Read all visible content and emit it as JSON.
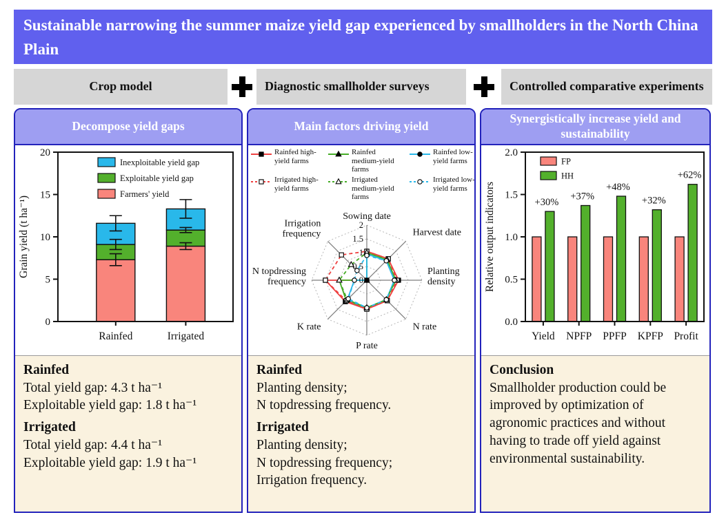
{
  "figure": {
    "title": "Sustainable narrowing the summer maize yield gap experienced by smallholders in the North China Plain",
    "methods": [
      {
        "label": "Crop model"
      },
      {
        "label": "Diagnostic smallholder surveys"
      },
      {
        "label": "Controlled comparative experiments"
      }
    ],
    "separator_symbol": "+"
  },
  "colors": {
    "banner_blue": "#6060ee",
    "panel_header_purple": "#9e9ef2",
    "panel_border_blue": "#2222bb",
    "method_box_gray": "#d6d6d6",
    "notes_cream": "#faf2df",
    "salmon": "#f9857c",
    "green": "#53b02c",
    "cyan": "#29b8ea",
    "radar_red": "#ee4040"
  },
  "panels": [
    {
      "header": "Decompose yield gaps",
      "notes": [
        {
          "heading": "Rainfed",
          "lines": [
            "Total yield gap: 4.3 t ha⁻¹",
            "Exploitable yield gap: 1.8 t ha⁻¹"
          ]
        },
        {
          "heading": "Irrigated",
          "lines": [
            "Total yield gap: 4.4 t ha⁻¹",
            "Exploitable yield gap: 1.9 t ha⁻¹"
          ]
        }
      ]
    },
    {
      "header": "Main factors driving yield",
      "notes": [
        {
          "heading": "Rainfed",
          "lines": [
            "Planting density;",
            "N topdressing frequency."
          ]
        },
        {
          "heading": "Irrigated",
          "lines": [
            "Planting density;",
            "N topdressing frequency;",
            "Irrigation frequency."
          ]
        }
      ]
    },
    {
      "header": "Synergistically increase yield and sustainability",
      "notes": [
        {
          "heading": "Conclusion",
          "lines": [
            "Smallholder production could be improved by optimization of agronomic practices and without having to trade off yield against environmental sustainability."
          ]
        }
      ]
    }
  ],
  "chart_data": [
    {
      "type": "bar",
      "subtype": "stacked",
      "ylabel": "Grain yield (t ha⁻¹)",
      "ylim": [
        0,
        20
      ],
      "yticks": [
        "0",
        "5",
        "10",
        "15",
        "20"
      ],
      "categories": [
        "Rainfed",
        "Irrigated"
      ],
      "series": [
        {
          "name": "Farmers' yield",
          "color": "#f9857c",
          "values": [
            7.3,
            8.9
          ],
          "errors": [
            0.7,
            0.4
          ]
        },
        {
          "name": "Exploitable yield gap",
          "color": "#53b02c",
          "values": [
            1.8,
            1.9
          ],
          "errors": [
            0.6,
            0.3
          ]
        },
        {
          "name": "Inexploitable yield gap",
          "color": "#29b8ea",
          "values": [
            2.5,
            2.5
          ],
          "errors": [
            0.9,
            1.1
          ]
        }
      ],
      "legend": [
        {
          "label": "Inexploitable yield gap",
          "color": "#29b8ea"
        },
        {
          "label": "Exploitable yield gap",
          "color": "#53b02c"
        },
        {
          "label": "Farmers' yield",
          "color": "#f9857c"
        }
      ],
      "legend_position": "top-inside",
      "grid": false
    },
    {
      "type": "radar",
      "axes": [
        "Sowing date",
        "Harvest date",
        "Planting density",
        "N rate",
        "P rate",
        "K rate",
        "N topdressing frequency",
        "Irrigation frequency"
      ],
      "rticks": [
        "0",
        "0.5",
        "1",
        "1.5",
        "2"
      ],
      "rmax": 2,
      "series": [
        {
          "name": "Rainfed high-yield farms",
          "color": "#ee4040",
          "dash": false,
          "marker": "square",
          "open": false,
          "values": [
            1.05,
            1.1,
            1.15,
            1.05,
            1.05,
            1.1,
            1.5,
            0.0
          ]
        },
        {
          "name": "Rainfed medium-yield farms",
          "color": "#46ac26",
          "dash": false,
          "marker": "triangle",
          "open": false,
          "values": [
            1.0,
            1.05,
            1.05,
            1.0,
            1.0,
            1.05,
            1.0,
            0.0
          ]
        },
        {
          "name": "Rainfed low-yield farms",
          "color": "#29b8ea",
          "dash": false,
          "marker": "circle",
          "open": false,
          "values": [
            0.95,
            1.0,
            1.0,
            1.0,
            1.0,
            1.0,
            0.45,
            0.0
          ]
        },
        {
          "name": "Irrigated high-yield farms",
          "color": "#ee4040",
          "dash": true,
          "marker": "square",
          "open": true,
          "values": [
            1.05,
            1.1,
            1.1,
            1.05,
            1.05,
            1.05,
            1.5,
            1.3
          ]
        },
        {
          "name": "Irrigated medium-yield farms",
          "color": "#46ac26",
          "dash": true,
          "marker": "triangle",
          "open": true,
          "values": [
            1.0,
            1.05,
            1.05,
            1.0,
            1.0,
            1.0,
            1.0,
            0.8
          ]
        },
        {
          "name": "Irrigated low-yield farms",
          "color": "#29b8ea",
          "dash": true,
          "marker": "circle",
          "open": true,
          "values": [
            0.9,
            1.0,
            1.0,
            1.0,
            1.0,
            0.95,
            0.45,
            0.5
          ]
        }
      ],
      "legend_position": "top"
    },
    {
      "type": "bar",
      "subtype": "grouped",
      "ylabel": "Relative output indicators",
      "ylim": [
        0,
        2
      ],
      "yticks": [
        "0.0",
        "0.5",
        "1.0",
        "1.5",
        "2.0"
      ],
      "categories": [
        "Yield",
        "NPFP",
        "PPFP",
        "KPFP",
        "Profit"
      ],
      "series": [
        {
          "name": "FP",
          "color": "#f9857c",
          "values": [
            1.0,
            1.0,
            1.0,
            1.0,
            1.0
          ]
        },
        {
          "name": "HH",
          "color": "#53b02c",
          "values": [
            1.3,
            1.37,
            1.48,
            1.32,
            1.62
          ]
        }
      ],
      "bar_labels": [
        "+30%",
        "+37%",
        "+48%",
        "+32%",
        "+62%"
      ],
      "legend": [
        {
          "label": "FP",
          "color": "#f9857c"
        },
        {
          "label": "HH",
          "color": "#53b02c"
        }
      ],
      "legend_position": "top-inside",
      "grid": false
    }
  ]
}
